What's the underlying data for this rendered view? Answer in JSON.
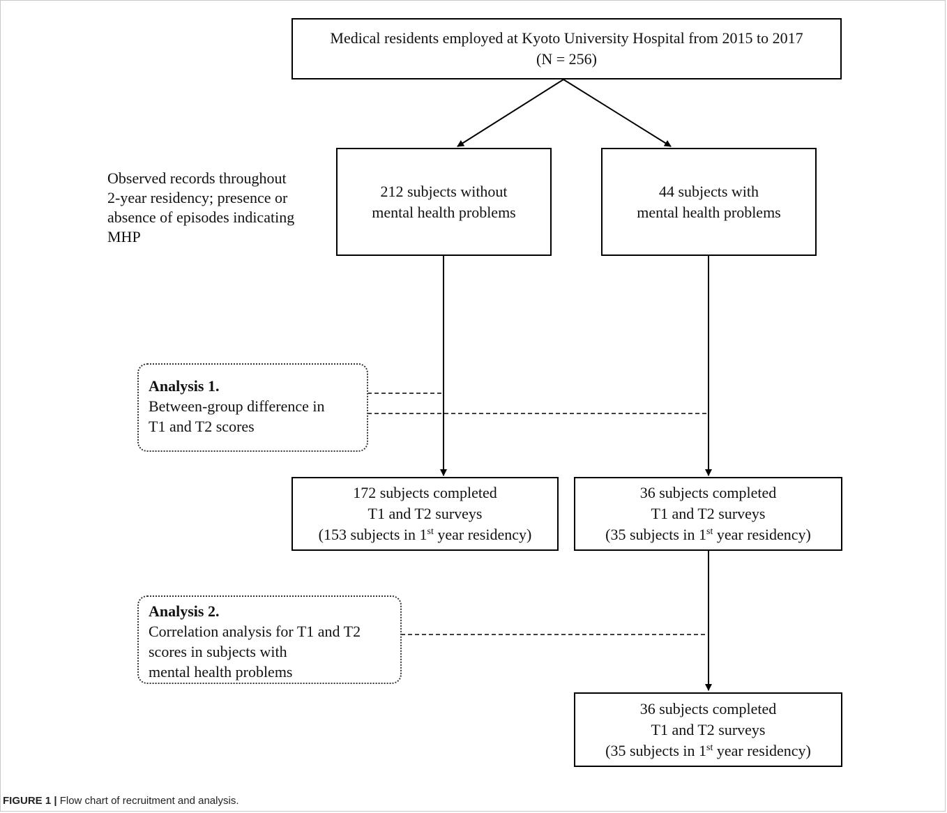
{
  "boxes": {
    "top": {
      "line1": "Medical residents employed at Kyoto University Hospital from 2015 to 2017",
      "line2": "(N = 256)"
    },
    "without_mhp": {
      "line1": "212 subjects without",
      "line2": "mental health problems"
    },
    "with_mhp": {
      "line1": "44 subjects with",
      "line2": "mental health problems"
    },
    "completed_without": {
      "line1": "172 subjects completed",
      "line2": "T1 and T2 surveys",
      "line3_pre": "(153 subjects in 1",
      "line3_sup": "st",
      "line3_post": " year residency)"
    },
    "completed_with": {
      "line1": "36 subjects completed",
      "line2": "T1 and T2 surveys",
      "line3_pre": "(35 subjects in 1",
      "line3_sup": "st",
      "line3_post": " year residency)"
    },
    "completed_with_2": {
      "line1": "36 subjects completed",
      "line2": "T1 and T2 surveys",
      "line3_pre": "(35 subjects in 1",
      "line3_sup": "st",
      "line3_post": " year residency)"
    }
  },
  "observed_note": {
    "lines": [
      "Observed records throughout",
      "2-year residency; presence or",
      "absence of episodes indicating",
      "MHP"
    ]
  },
  "analysis1": {
    "title": "Analysis 1.",
    "lines": [
      "Between-group difference in",
      "T1 and T2 scores"
    ]
  },
  "analysis2": {
    "title": "Analysis 2.",
    "lines": [
      "Correlation analysis for T1 and T2",
      "scores in subjects  with",
      "mental health problems"
    ]
  },
  "caption": {
    "label": "FIGURE 1 |",
    "text": " Flow chart of recruitment and analysis."
  }
}
